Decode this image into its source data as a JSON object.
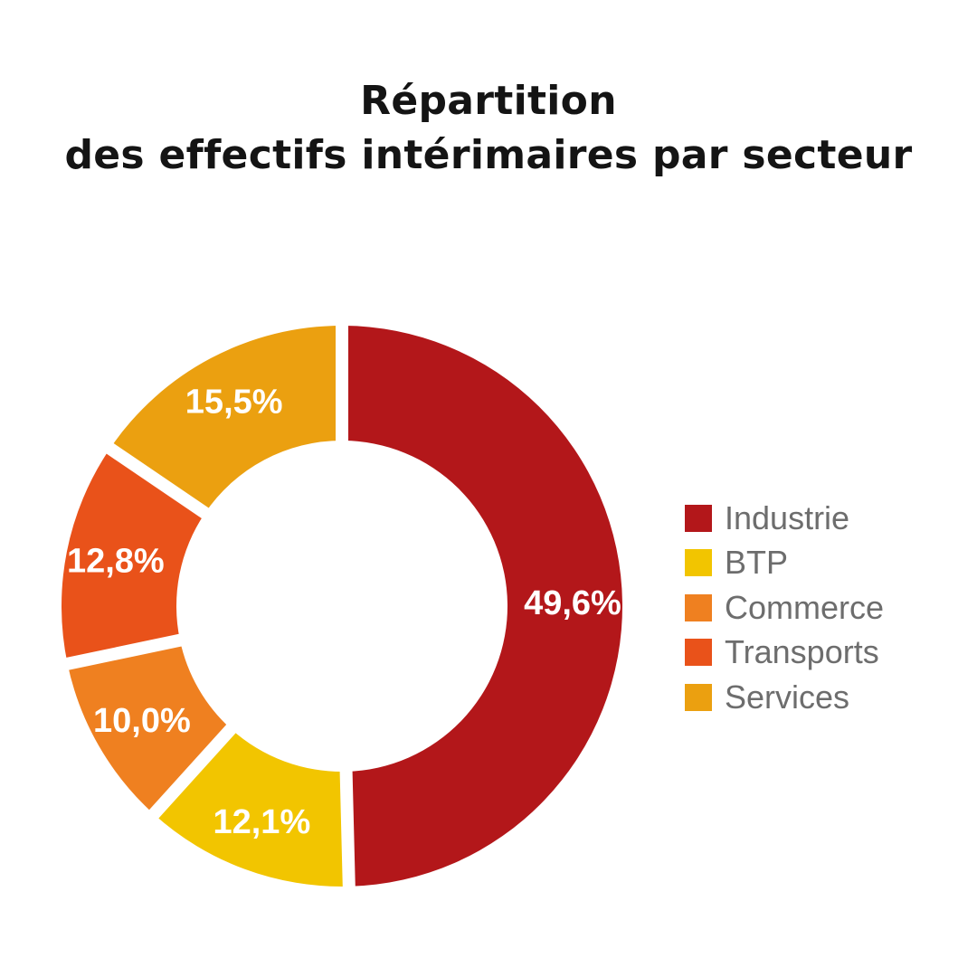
{
  "chart_data": {
    "type": "pie",
    "variant": "donut",
    "title_lines": [
      "Répartition",
      "des effectifs intérimaires par secteur"
    ],
    "unit": "%",
    "slices": [
      {
        "name": "Industrie",
        "value": 49.6,
        "label": "49,6%",
        "color": "#b3171a"
      },
      {
        "name": "BTP",
        "value": 12.1,
        "label": "12,1%",
        "color": "#f2c500"
      },
      {
        "name": "Commerce",
        "value": 10.0,
        "label": "10,0%",
        "color": "#ef8020"
      },
      {
        "name": "Transports",
        "value": 12.8,
        "label": "12,8%",
        "color": "#e9521a"
      },
      {
        "name": "Services",
        "value": 15.5,
        "label": "15,5%",
        "color": "#eba010"
      }
    ],
    "legend": {
      "position": "right",
      "items": [
        "Industrie",
        "BTP",
        "Commerce",
        "Transports",
        "Services"
      ]
    }
  }
}
